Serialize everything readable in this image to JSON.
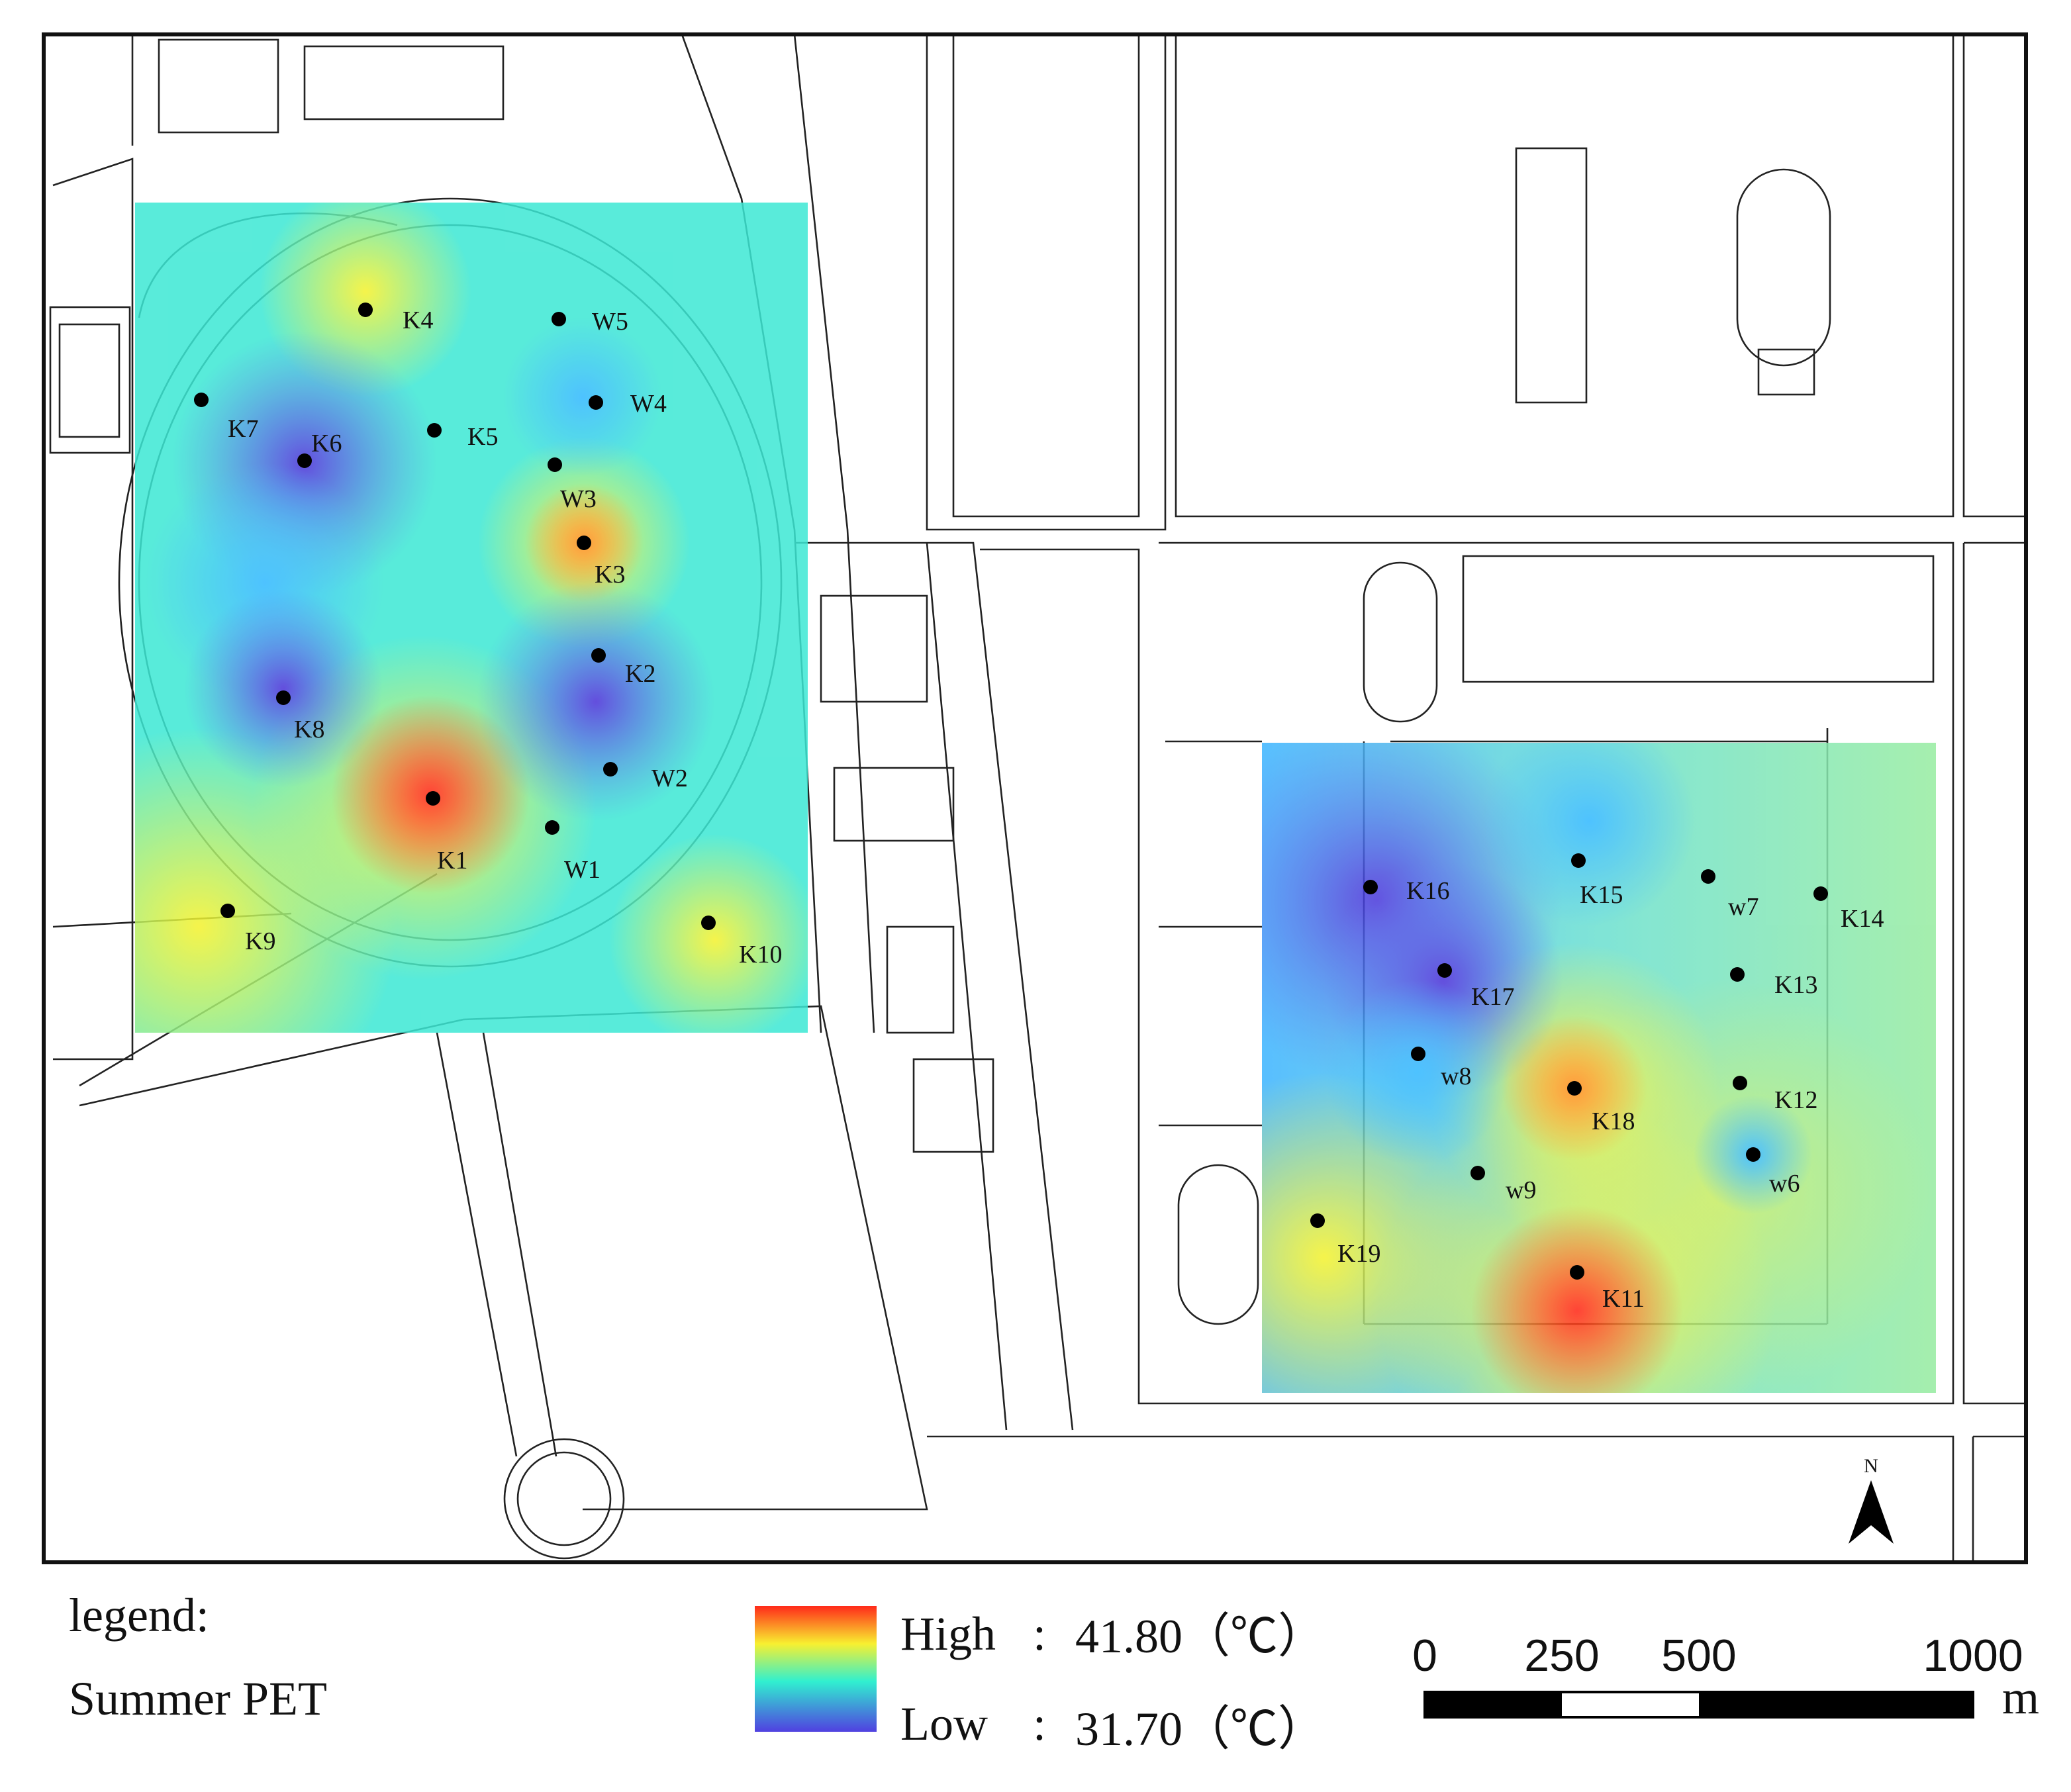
{
  "legend": {
    "title": "legend:",
    "subtitle": "Summer PET",
    "high": {
      "label": "High",
      "sep": ":",
      "value": "41.80（℃）"
    },
    "low": {
      "label": "Low",
      "sep": ":",
      "value": "31.70（℃）"
    }
  },
  "scale_bar": {
    "ticks": [
      0,
      250,
      500,
      1000
    ],
    "unit": "m"
  },
  "north": "N",
  "points": [
    "K4",
    "W5",
    "K7",
    "W4",
    "K5",
    "K6",
    "W3",
    "K3",
    "K2",
    "K8",
    "W2",
    "K1",
    "W1",
    "K9",
    "K10",
    "K16",
    "K15",
    "w7",
    "K14",
    "K17",
    "K13",
    "w8",
    "K18",
    "K12",
    "w6",
    "w9",
    "K19",
    "K11"
  ]
}
